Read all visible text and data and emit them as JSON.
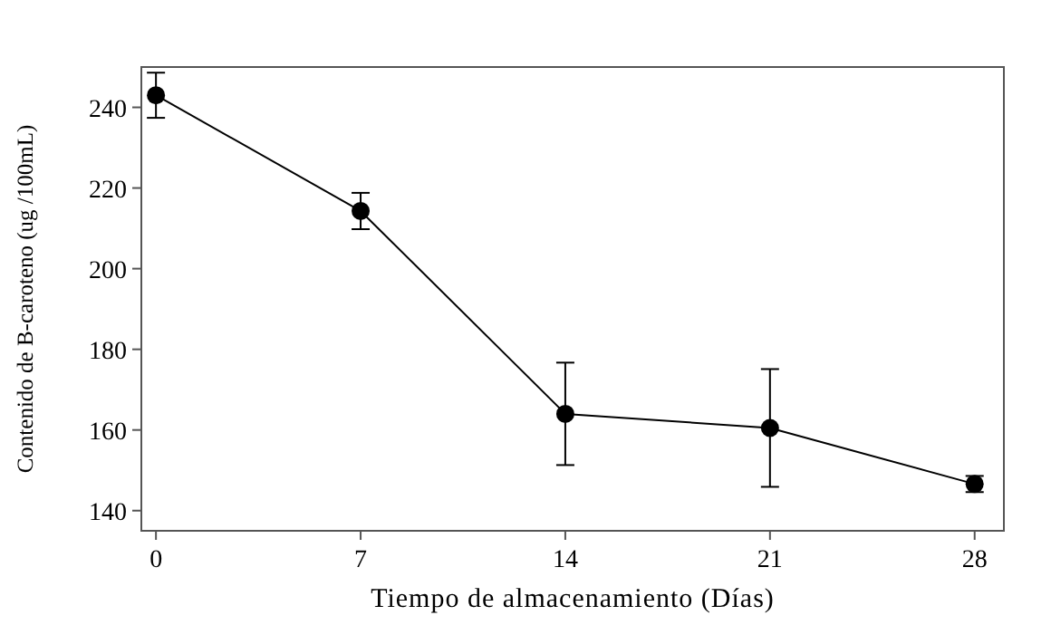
{
  "chart_data": {
    "type": "line",
    "xlabel": "Tiempo de almacenamiento (Días)",
    "ylabel": "Contenido de B-caroteno (ug /100mL)",
    "x": [
      0,
      7,
      14,
      21,
      28
    ],
    "series": [
      {
        "color": "#000000",
        "values": [
          243,
          214.3,
          164,
          160.5,
          146.6
        ],
        "errors": [
          5.6,
          4.5,
          12.7,
          14.6,
          2
        ]
      }
    ],
    "xlim": [
      -0.5,
      29
    ],
    "xticks": [
      0,
      7,
      14,
      21,
      28
    ],
    "ylim": [
      135,
      250
    ],
    "yticks": [
      140,
      160,
      180,
      200,
      220,
      240
    ],
    "grid": false,
    "marker": "circle",
    "line_style": "solid"
  }
}
